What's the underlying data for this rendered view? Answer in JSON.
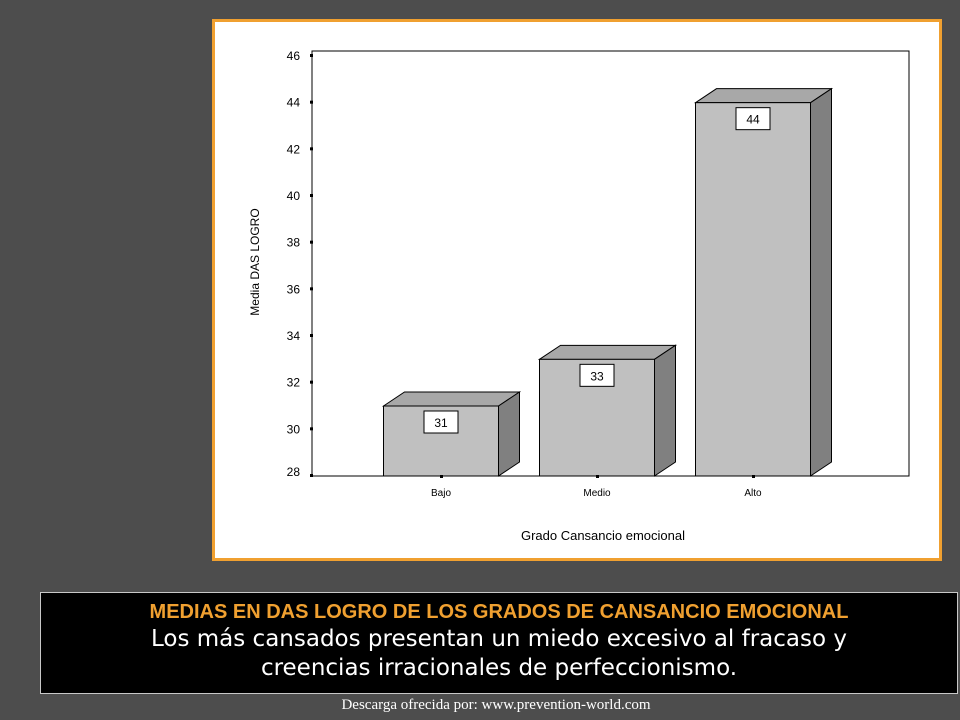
{
  "chart_data": {
    "type": "bar",
    "categories": [
      "Bajo",
      "Medio",
      "Alto"
    ],
    "values": [
      31,
      33,
      44
    ],
    "data_labels": [
      "31",
      "33",
      "44"
    ],
    "xlabel": "Grado Cansancio emocional",
    "ylabel": "Media DAS LOGRO",
    "ylim": [
      28,
      46
    ],
    "yticks": [
      28,
      30,
      32,
      34,
      36,
      38,
      40,
      42,
      44,
      46
    ],
    "grid": false,
    "style": "3d-bar",
    "bar_color": "#c0c0c0",
    "bar_side_color": "#808080"
  },
  "caption": {
    "title": "MEDIAS EN DAS LOGRO DE LOS GRADOS DE CANSANCIO EMOCIONAL",
    "line1": "Los más cansados presentan un miedo excesivo al fracaso y",
    "line2": "creencias irracionales de perfeccionismo."
  },
  "footer": {
    "credit": "Descarga ofrecida por: www.prevention-world.com"
  },
  "colors": {
    "background": "#4d4d4d",
    "frame_border": "#f0a030",
    "caption_title": "#f0a030"
  }
}
